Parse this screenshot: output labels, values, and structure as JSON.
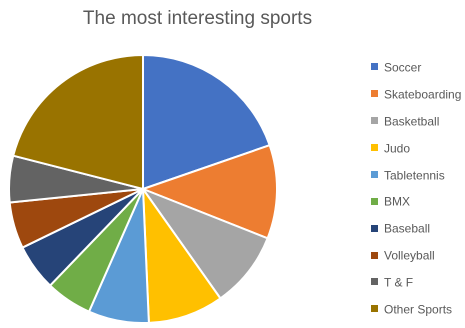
{
  "chart_data": {
    "type": "pie",
    "title": "The most interesting sports",
    "categories": [
      "Soccer",
      "Skateboarding",
      "Basketball",
      "Judo",
      "Tabletennis",
      "BMX",
      "Baseball",
      "Volleyball",
      "T & F",
      "Other Sports"
    ],
    "values": [
      19.7,
      11.3,
      9.2,
      9.1,
      7.3,
      5.6,
      5.6,
      5.6,
      5.6,
      21.0
    ],
    "colors": [
      "#4472C4",
      "#ED7D31",
      "#A5A5A5",
      "#FFC000",
      "#5B9BD5",
      "#70AD47",
      "#264478",
      "#9E480E",
      "#636363",
      "#997300"
    ],
    "legend_position": "right",
    "start_angle_deg": 0,
    "direction": "clockwise"
  }
}
